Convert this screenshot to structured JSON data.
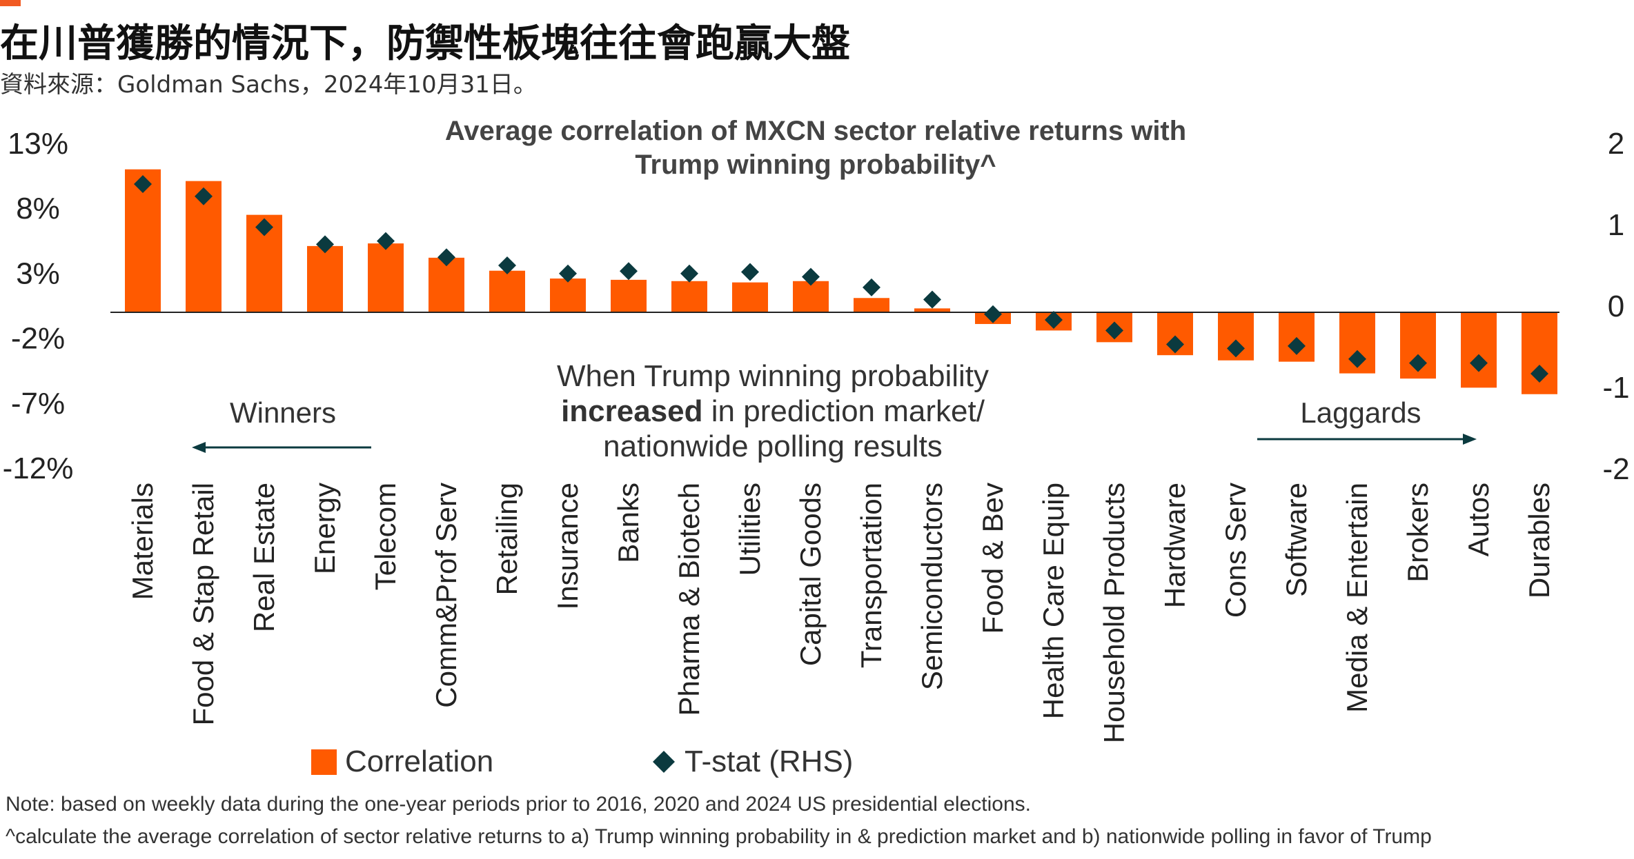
{
  "headline": "在川普獲勝的情況下，防禦性板塊往往會跑贏大盤",
  "source": "資料來源：Goldman Sachs，2024年10月31日。",
  "colors": {
    "bar": "#FF5A00",
    "diamond": "#0B3A3F",
    "accent": "#F15A22"
  },
  "chart_data": {
    "type": "bar",
    "title_lines": [
      "Average correlation of MXCN sector relative returns with",
      "Trump winning probability^"
    ],
    "categories": [
      "Materials",
      "Food & Stap Retail",
      "Real Estate",
      "Energy",
      "Telecom",
      "Comm&Prof Serv",
      "Retailing",
      "Insurance",
      "Banks",
      "Pharma & Biotech",
      "Utilities",
      "Capital Goods",
      "Transportation",
      "Semiconductors",
      "Food & Bev",
      "Health Care Equip",
      "Household Products",
      "Hardware",
      "Cons Serv",
      "Software",
      "Media & Entertain",
      "Brokers",
      "Autos",
      "Durables"
    ],
    "series": [
      {
        "name": "Correlation",
        "axis": "left",
        "marker": "bar",
        "values": [
          11.0,
          10.1,
          7.5,
          5.1,
          5.3,
          4.2,
          3.2,
          2.6,
          2.5,
          2.4,
          2.3,
          2.4,
          1.1,
          0.3,
          -0.9,
          -1.4,
          -2.3,
          -3.3,
          -3.7,
          -3.8,
          -4.7,
          -5.1,
          -5.8,
          -6.3
        ]
      },
      {
        "name": "T-stat (RHS)",
        "axis": "right",
        "marker": "diamond",
        "values": [
          1.5,
          1.35,
          0.97,
          0.76,
          0.8,
          0.6,
          0.5,
          0.4,
          0.43,
          0.4,
          0.42,
          0.36,
          0.23,
          0.08,
          -0.1,
          -0.17,
          -0.3,
          -0.47,
          -0.52,
          -0.49,
          -0.65,
          -0.7,
          -0.7,
          -0.83
        ]
      }
    ],
    "y_left": {
      "ylim": [
        -12,
        13
      ],
      "ticks": [
        "13%",
        "8%",
        "3%",
        "-2%",
        "-7%",
        "-12%"
      ],
      "tick_values": [
        13,
        8,
        3,
        -2,
        -7,
        -12
      ]
    },
    "y_right": {
      "ylim": [
        -2,
        2
      ],
      "ticks": [
        "2",
        "1",
        "0",
        "-1",
        "-2"
      ],
      "tick_values": [
        2,
        1,
        0,
        -1,
        -2
      ]
    },
    "annotations": {
      "winners": "Winners",
      "laggards": "Laggards",
      "middle_lines": [
        [
          {
            "t": "When Trump winning probability",
            "b": false
          }
        ],
        [
          {
            "t": "increased",
            "b": true
          },
          {
            "t": " in prediction market/",
            "b": false
          }
        ],
        [
          {
            "t": "nationwide polling results",
            "b": false
          }
        ]
      ]
    },
    "legend": {
      "placement": "bottom",
      "items": [
        {
          "label": "Correlation",
          "marker": "bar"
        },
        {
          "label": "T-stat (RHS)",
          "marker": "diamond"
        }
      ]
    },
    "grid": false
  },
  "notes": [
    "Note: based on weekly data during the one-year periods prior to 2016, 2020 and 2024 US presidential elections.",
    "^calculate the average correlation of sector relative returns to a) Trump winning probability in & prediction market and b) nationwide polling in favor of Trump"
  ]
}
